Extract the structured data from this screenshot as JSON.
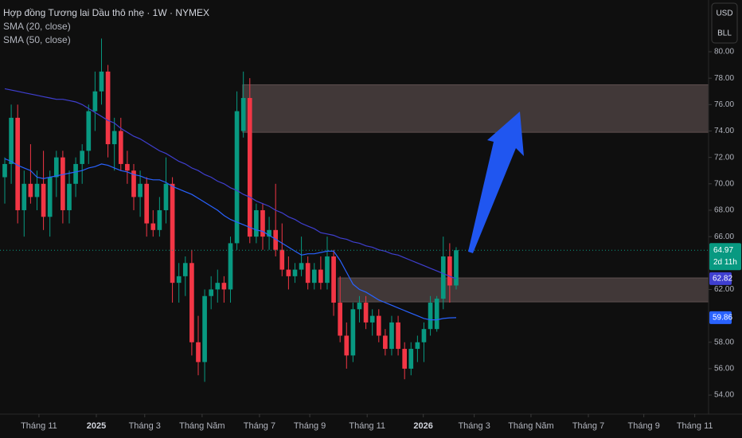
{
  "chart_data": {
    "type": "candlestick",
    "title": "Hợp đồng Tương lai Dầu thô nhẹ · 1W · NYMEX",
    "currency": "USD",
    "unit": "BLL",
    "countdown": "2d 11h",
    "up_color": "#089981",
    "down_color": "#f23645",
    "open": [
      70.5,
      71.5,
      75,
      68,
      70,
      69,
      70,
      67.5,
      70.5,
      72,
      68,
      70,
      71.5,
      72.5,
      75.5,
      77,
      78.5,
      73,
      74,
      71.5,
      71,
      69,
      70,
      67,
      66.5,
      68,
      70,
      62.5,
      63,
      64,
      58,
      56.5,
      61.5,
      62,
      62.5,
      62,
      65.5,
      74,
      76.5,
      66,
      68,
      66,
      66.5,
      65,
      63.5,
      63,
      63.5,
      64,
      62.5,
      63.5,
      62.5,
      64.5,
      61,
      58.5,
      57,
      60.5,
      61,
      59.5,
      60,
      58.5,
      57.5,
      59.5,
      57.5,
      56,
      57.5,
      58,
      59,
      59,
      61.3,
      64.5,
      62.3
    ],
    "high": [
      72,
      76,
      76,
      71,
      73,
      71,
      72.5,
      71,
      72.5,
      72.5,
      71,
      72,
      73,
      76,
      78.5,
      81,
      79,
      75,
      75,
      72.5,
      71.5,
      71,
      70.5,
      68,
      69,
      72,
      70.5,
      64,
      64.5,
      65,
      60,
      62,
      63,
      63.5,
      63,
      66,
      77,
      78.5,
      78,
      68.5,
      68.5,
      67.5,
      70,
      67,
      64.5,
      64,
      66,
      64.5,
      64,
      64.5,
      66,
      65,
      63,
      59.5,
      61,
      61.5,
      61.5,
      60.5,
      60.5,
      59,
      60,
      60,
      58,
      58,
      58.5,
      59.5,
      61.5,
      61.5,
      66,
      65.5,
      65.2
    ],
    "low": [
      68.5,
      70,
      67,
      66,
      68.5,
      68,
      66.5,
      66,
      69,
      67,
      67,
      69,
      70,
      71.5,
      74,
      76,
      72,
      71,
      71,
      70,
      68,
      67.5,
      66,
      66,
      66,
      67,
      61,
      61,
      61.5,
      57,
      55.5,
      55,
      60.5,
      61,
      61,
      61,
      65,
      73.5,
      65.5,
      65.5,
      65,
      65,
      64.5,
      63,
      62,
      62.5,
      63,
      62,
      62,
      62,
      62,
      60,
      58,
      56,
      56.5,
      59.5,
      59,
      58.5,
      58,
      57,
      57,
      57,
      55.2,
      55.5,
      56.5,
      56.5,
      58.5,
      58.8,
      60.5,
      61,
      62
    ],
    "close": [
      71.5,
      75,
      68,
      70,
      69,
      70,
      67.5,
      70.5,
      72,
      68,
      70,
      71.5,
      72.5,
      75.5,
      77,
      78.5,
      73,
      74,
      71.5,
      71,
      69,
      70,
      67,
      66.5,
      68,
      70,
      62.5,
      63,
      64,
      58,
      56.5,
      61.5,
      62,
      62.5,
      62,
      65.5,
      75.5,
      76.5,
      66,
      68,
      66,
      66.5,
      65,
      63.5,
      63,
      63.5,
      64,
      62.5,
      63.5,
      62.5,
      64.5,
      61,
      58.5,
      57,
      60.5,
      61,
      59.5,
      60,
      58.5,
      57.5,
      59.5,
      57.5,
      56,
      57.5,
      58,
      59,
      61,
      61.3,
      64.5,
      62.3,
      64.97
    ],
    "series": [
      {
        "name": "SMA (20, close)",
        "color": "#2962ff",
        "values": [
          71.9,
          71.7,
          71.4,
          71.2,
          71.0,
          70.5,
          70.4,
          70.5,
          70.6,
          70.7,
          70.8,
          70.9,
          71.0,
          71.2,
          71.3,
          71.5,
          71.4,
          71.2,
          71.0,
          70.9,
          70.7,
          70.6,
          70.4,
          70.3,
          70.3,
          70.1,
          69.8,
          69.6,
          69.4,
          69.2,
          68.9,
          68.6,
          68.3,
          68.0,
          67.6,
          67.3,
          67.1,
          66.9,
          66.7,
          66.5,
          66.4,
          66.1,
          65.8,
          65.5,
          65.2,
          64.9,
          64.6,
          64.7,
          64.7,
          64.8,
          64.9,
          64.9,
          64.2,
          63.3,
          62.4,
          62.0,
          61.8,
          61.5,
          61.2,
          61.0,
          60.8,
          60.6,
          60.4,
          60.2,
          60.0,
          59.8,
          59.7,
          59.7,
          59.8,
          59.85,
          59.86
        ]
      },
      {
        "name": "SMA (50, close)",
        "color": "#3f3fd0",
        "values": [
          77.2,
          77.1,
          77.0,
          76.9,
          76.8,
          76.7,
          76.6,
          76.5,
          76.4,
          76.4,
          76.3,
          76.2,
          76.0,
          75.7,
          75.4,
          75.1,
          74.8,
          74.6,
          74.2,
          73.9,
          73.6,
          73.4,
          73.1,
          72.8,
          72.5,
          72.3,
          72.0,
          71.7,
          71.5,
          71.2,
          71.0,
          70.7,
          70.5,
          70.2,
          70.0,
          69.7,
          69.5,
          69.2,
          69.0,
          68.7,
          68.5,
          68.3,
          68.0,
          67.8,
          67.5,
          67.3,
          67.0,
          66.8,
          66.6,
          66.3,
          66.2,
          66.1,
          65.9,
          65.8,
          65.6,
          65.5,
          65.3,
          65.2,
          65.0,
          64.9,
          64.7,
          64.6,
          64.4,
          64.2,
          64.0,
          63.8,
          63.6,
          63.4,
          63.2,
          63.0,
          62.82
        ]
      }
    ],
    "zones": [
      {
        "top": 77.5,
        "bottom": 73.9,
        "start": 36.9
      },
      {
        "top": 62.87,
        "bottom": 61.06,
        "start": 51.7
      }
    ],
    "xlim": [
      -0.74,
      109.14
    ],
    "xticks": [
      {
        "value": 5.3,
        "label": "Tháng 11"
      },
      {
        "value": 14.2,
        "label": "2025"
      },
      {
        "value": 21.7,
        "label": "Tháng 3"
      },
      {
        "value": 30.6,
        "label": "Tháng Năm"
      },
      {
        "value": 39.5,
        "label": "Tháng 7"
      },
      {
        "value": 47.3,
        "label": "Tháng 9"
      },
      {
        "value": 56.2,
        "label": "Tháng 11"
      },
      {
        "value": 64.9,
        "label": "2026"
      },
      {
        "value": 72.8,
        "label": "Tháng 3"
      },
      {
        "value": 81.6,
        "label": "Tháng Năm"
      },
      {
        "value": 90.5,
        "label": "Tháng 7"
      },
      {
        "value": 99.1,
        "label": "Tháng 9"
      },
      {
        "value": 107,
        "label": "Tháng 11"
      }
    ],
    "ylim": [
      52.86,
      83.92
    ],
    "yticks": [
      {
        "value": 80,
        "label": "80.00"
      },
      {
        "value": 78,
        "label": "78.00"
      },
      {
        "value": 76,
        "label": "76.00"
      },
      {
        "value": 74,
        "label": "74.00"
      },
      {
        "value": 72,
        "label": "72.00"
      },
      {
        "value": 70,
        "label": "70.00"
      },
      {
        "value": 68,
        "label": "68.00"
      },
      {
        "value": 66,
        "label": "66.00"
      },
      {
        "value": 62,
        "label": "62.00"
      },
      {
        "value": 58,
        "label": "58.00"
      },
      {
        "value": 56,
        "label": "56.00"
      },
      {
        "value": 54,
        "label": "54.00"
      }
    ]
  }
}
